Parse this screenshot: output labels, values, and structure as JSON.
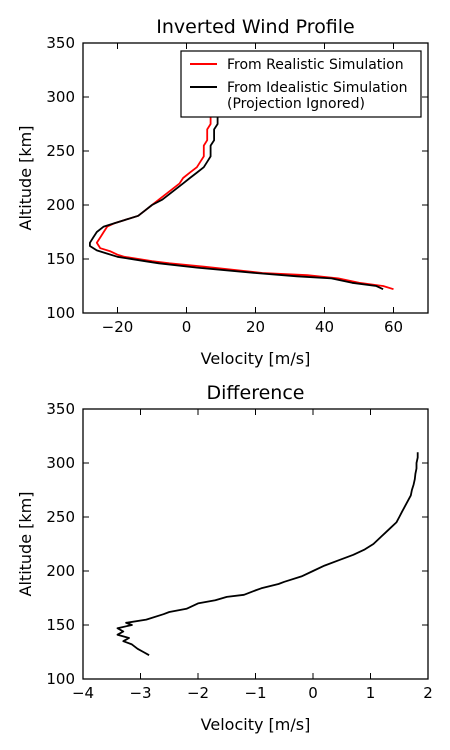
{
  "chart_data": [
    {
      "type": "line",
      "title": "Inverted Wind Profile",
      "xlabel": "Velocity [m/s]",
      "ylabel": "Altitude [km]",
      "xlim": [
        -30,
        70
      ],
      "ylim": [
        100,
        350
      ],
      "xticks": [
        -20,
        0,
        20,
        40,
        60
      ],
      "yticks": [
        100,
        150,
        200,
        250,
        300,
        350
      ],
      "grid": false,
      "legend": "top-right",
      "series": [
        {
          "name": "From Realistic Simulation",
          "color": "#ff0000",
          "points": [
            [
              60,
              122
            ],
            [
              57,
              125
            ],
            [
              50,
              128
            ],
            [
              44,
              132
            ],
            [
              35,
              135
            ],
            [
              22,
              137
            ],
            [
              5,
              143
            ],
            [
              -5,
              146
            ],
            [
              -10,
              148
            ],
            [
              -18,
              152
            ],
            [
              -20,
              154
            ],
            [
              -22,
              157
            ],
            [
              -25,
              160
            ],
            [
              -26,
              165
            ],
            [
              -25,
              170
            ],
            [
              -24,
              175
            ],
            [
              -23,
              180
            ],
            [
              -21,
              183
            ],
            [
              -18,
              186
            ],
            [
              -14,
              190
            ],
            [
              -12,
              195
            ],
            [
              -10,
              200
            ],
            [
              -8,
              205
            ],
            [
              -6,
              210
            ],
            [
              -4,
              215
            ],
            [
              -2,
              220
            ],
            [
              -1,
              225
            ],
            [
              1,
              230
            ],
            [
              3,
              235
            ],
            [
              4,
              240
            ],
            [
              5,
              245
            ],
            [
              5,
              250
            ],
            [
              5,
              255
            ],
            [
              6,
              260
            ],
            [
              6,
              265
            ],
            [
              6,
              270
            ],
            [
              7,
              275
            ],
            [
              7,
              280
            ],
            [
              7,
              285
            ],
            [
              7,
              290
            ],
            [
              8,
              295
            ],
            [
              8,
              300
            ],
            [
              8,
              305
            ],
            [
              8,
              310
            ]
          ]
        },
        {
          "name": "From Idealistic Simulation\n(Projection Ignored)",
          "color": "#000000",
          "points": [
            [
              57,
              122
            ],
            [
              55,
              125
            ],
            [
              48,
              128
            ],
            [
              42,
              132
            ],
            [
              32,
              134
            ],
            [
              20,
              137
            ],
            [
              3,
              142
            ],
            [
              -8,
              146
            ],
            [
              -12,
              148
            ],
            [
              -20,
              152
            ],
            [
              -23,
              155
            ],
            [
              -26,
              158
            ],
            [
              -28,
              162
            ],
            [
              -28,
              165
            ],
            [
              -27,
              170
            ],
            [
              -26,
              175
            ],
            [
              -24,
              180
            ],
            [
              -21,
              183
            ],
            [
              -18,
              186
            ],
            [
              -14,
              190
            ],
            [
              -12,
              195
            ],
            [
              -10,
              200
            ],
            [
              -7,
              205
            ],
            [
              -5,
              210
            ],
            [
              -3,
              215
            ],
            [
              -1,
              220
            ],
            [
              1,
              225
            ],
            [
              3,
              230
            ],
            [
              5,
              235
            ],
            [
              6,
              240
            ],
            [
              7,
              245
            ],
            [
              7,
              250
            ],
            [
              7,
              255
            ],
            [
              8,
              260
            ],
            [
              8,
              265
            ],
            [
              8,
              270
            ],
            [
              9,
              275
            ],
            [
              9,
              280
            ],
            [
              9,
              285
            ],
            [
              9,
              290
            ],
            [
              10,
              295
            ],
            [
              10,
              300
            ],
            [
              10,
              305
            ],
            [
              10,
              310
            ]
          ]
        }
      ]
    },
    {
      "type": "line",
      "title": "Difference",
      "xlabel": "Velocity [m/s]",
      "ylabel": "Altitude [km]",
      "xlim": [
        -4,
        2
      ],
      "ylim": [
        100,
        350
      ],
      "xticks": [
        -4,
        -3,
        -2,
        -1,
        0,
        1,
        2
      ],
      "yticks": [
        100,
        150,
        200,
        250,
        300,
        350
      ],
      "grid": false,
      "series": [
        {
          "color": "#000000",
          "points": [
            [
              -2.85,
              122
            ],
            [
              -2.95,
              125
            ],
            [
              -3.05,
              128
            ],
            [
              -3.15,
              132
            ],
            [
              -3.3,
              135
            ],
            [
              -3.2,
              138
            ],
            [
              -3.4,
              141
            ],
            [
              -3.3,
              144
            ],
            [
              -3.4,
              147
            ],
            [
              -3.15,
              150
            ],
            [
              -3.25,
              152
            ],
            [
              -2.9,
              155
            ],
            [
              -2.6,
              160
            ],
            [
              -2.5,
              162
            ],
            [
              -2.2,
              165
            ],
            [
              -2.0,
              170
            ],
            [
              -1.7,
              173
            ],
            [
              -1.5,
              176
            ],
            [
              -1.2,
              178
            ],
            [
              -1.0,
              182
            ],
            [
              -0.9,
              184
            ],
            [
              -0.6,
              188
            ],
            [
              -0.5,
              190
            ],
            [
              -0.2,
              195
            ],
            [
              0.0,
              200
            ],
            [
              0.2,
              205
            ],
            [
              0.45,
              210
            ],
            [
              0.7,
              215
            ],
            [
              0.9,
              220
            ],
            [
              1.05,
              225
            ],
            [
              1.15,
              230
            ],
            [
              1.25,
              235
            ],
            [
              1.35,
              240
            ],
            [
              1.45,
              245
            ],
            [
              1.5,
              250
            ],
            [
              1.55,
              255
            ],
            [
              1.6,
              260
            ],
            [
              1.65,
              265
            ],
            [
              1.7,
              270
            ],
            [
              1.72,
              275
            ],
            [
              1.75,
              280
            ],
            [
              1.77,
              285
            ],
            [
              1.78,
              290
            ],
            [
              1.8,
              295
            ],
            [
              1.8,
              300
            ],
            [
              1.82,
              305
            ],
            [
              1.82,
              310
            ]
          ]
        }
      ]
    }
  ]
}
